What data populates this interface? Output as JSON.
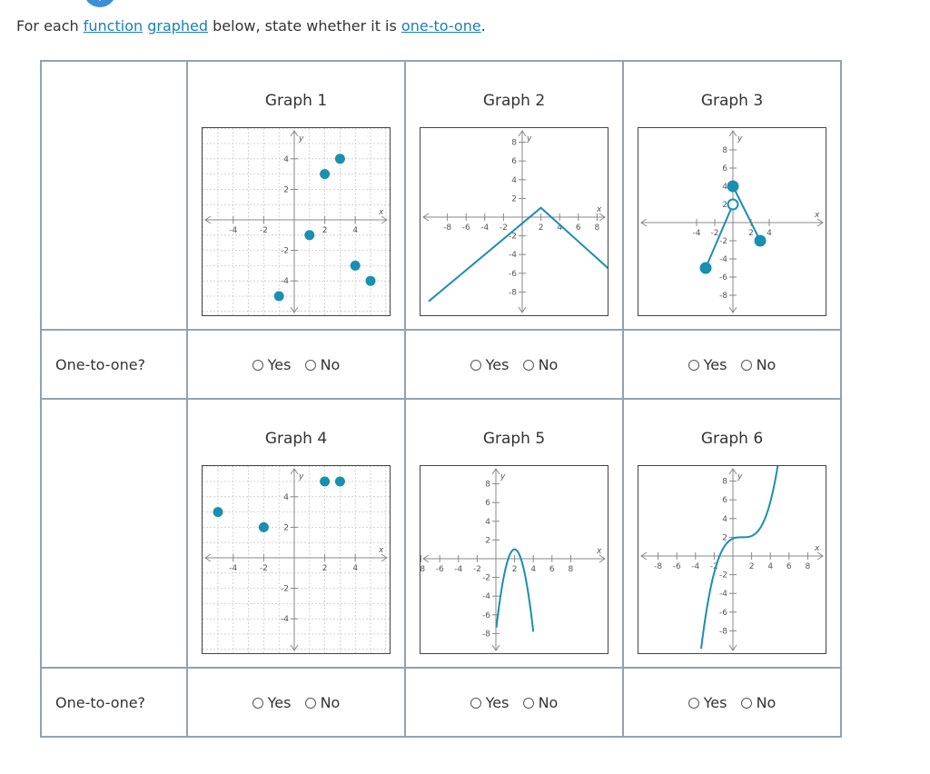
{
  "prompt": {
    "before": "For each ",
    "link1": "function",
    "link2": "graphed",
    "middle": " below, state whether it is ",
    "link3": "one-to-one",
    "after": "."
  },
  "question_label": "One-to-one?",
  "options": {
    "yes": "Yes",
    "no": "No"
  },
  "accent_color": "#1a8fb0",
  "graphs": [
    {
      "title": "Graph 1",
      "x_axis_label": "x",
      "y_axis_label": "y",
      "x_ticks": [
        "-4",
        "-2",
        "2",
        "4"
      ],
      "y_ticks": [
        "4",
        "2",
        "-2",
        "-4"
      ],
      "points": [
        [
          -1,
          -5
        ],
        [
          1,
          -1
        ],
        [
          2,
          3
        ],
        [
          3,
          4
        ],
        [
          4,
          -3
        ],
        [
          5,
          -4
        ]
      ]
    },
    {
      "title": "Graph 2",
      "x_axis_label": "x",
      "y_axis_label": "y",
      "x_ticks": [
        "-8",
        "-6",
        "-4",
        "-2",
        "2",
        "4",
        "6",
        "8"
      ],
      "y_ticks": [
        "8",
        "6",
        "4",
        "2",
        "-2",
        "-4",
        "-6",
        "-8"
      ],
      "line_vertices": [
        [
          -10,
          -9
        ],
        [
          2,
          1
        ],
        [
          12,
          -8
        ]
      ]
    },
    {
      "title": "Graph 3",
      "x_axis_label": "x",
      "y_axis_label": "y",
      "x_ticks": [
        "-4",
        "-2",
        "2",
        "4"
      ],
      "y_ticks": [
        "8",
        "6",
        "4",
        "2",
        "-2",
        "-4",
        "-6",
        "-8"
      ],
      "segment_left": {
        "from": [
          -3,
          -5
        ],
        "to": [
          0,
          2
        ],
        "from_closed": true,
        "to_closed": false
      },
      "segment_right": {
        "from": [
          0,
          4
        ],
        "to": [
          3,
          -2
        ],
        "from_closed": true,
        "to_closed": true
      }
    },
    {
      "title": "Graph 4",
      "x_axis_label": "x",
      "y_axis_label": "y",
      "x_ticks": [
        "-4",
        "-2",
        "2",
        "4"
      ],
      "y_ticks": [
        "4",
        "2",
        "-2",
        "-4"
      ],
      "points": [
        [
          -5,
          3
        ],
        [
          -2,
          2
        ],
        [
          2,
          5
        ],
        [
          3,
          5
        ]
      ]
    },
    {
      "title": "Graph 5",
      "x_axis_label": "x",
      "y_axis_label": "y",
      "x_ticks": [
        "-8",
        "-6",
        "-4",
        "-2",
        "2",
        "4",
        "6",
        "8"
      ],
      "y_ticks": [
        "8",
        "6",
        "4",
        "2",
        "-2",
        "-4",
        "-6",
        "-8"
      ],
      "curve": "y = 1 - 2.2(x-2)^2"
    },
    {
      "title": "Graph 6",
      "x_axis_label": "x",
      "y_axis_label": "y",
      "x_ticks": [
        "-8",
        "-6",
        "-4",
        "-2",
        "2",
        "4",
        "6",
        "8"
      ],
      "y_ticks": [
        "8",
        "6",
        "4",
        "2",
        "-2",
        "-4",
        "-6",
        "-8"
      ],
      "curve": "y = 2 + 0.14(x-1)^3"
    }
  ]
}
